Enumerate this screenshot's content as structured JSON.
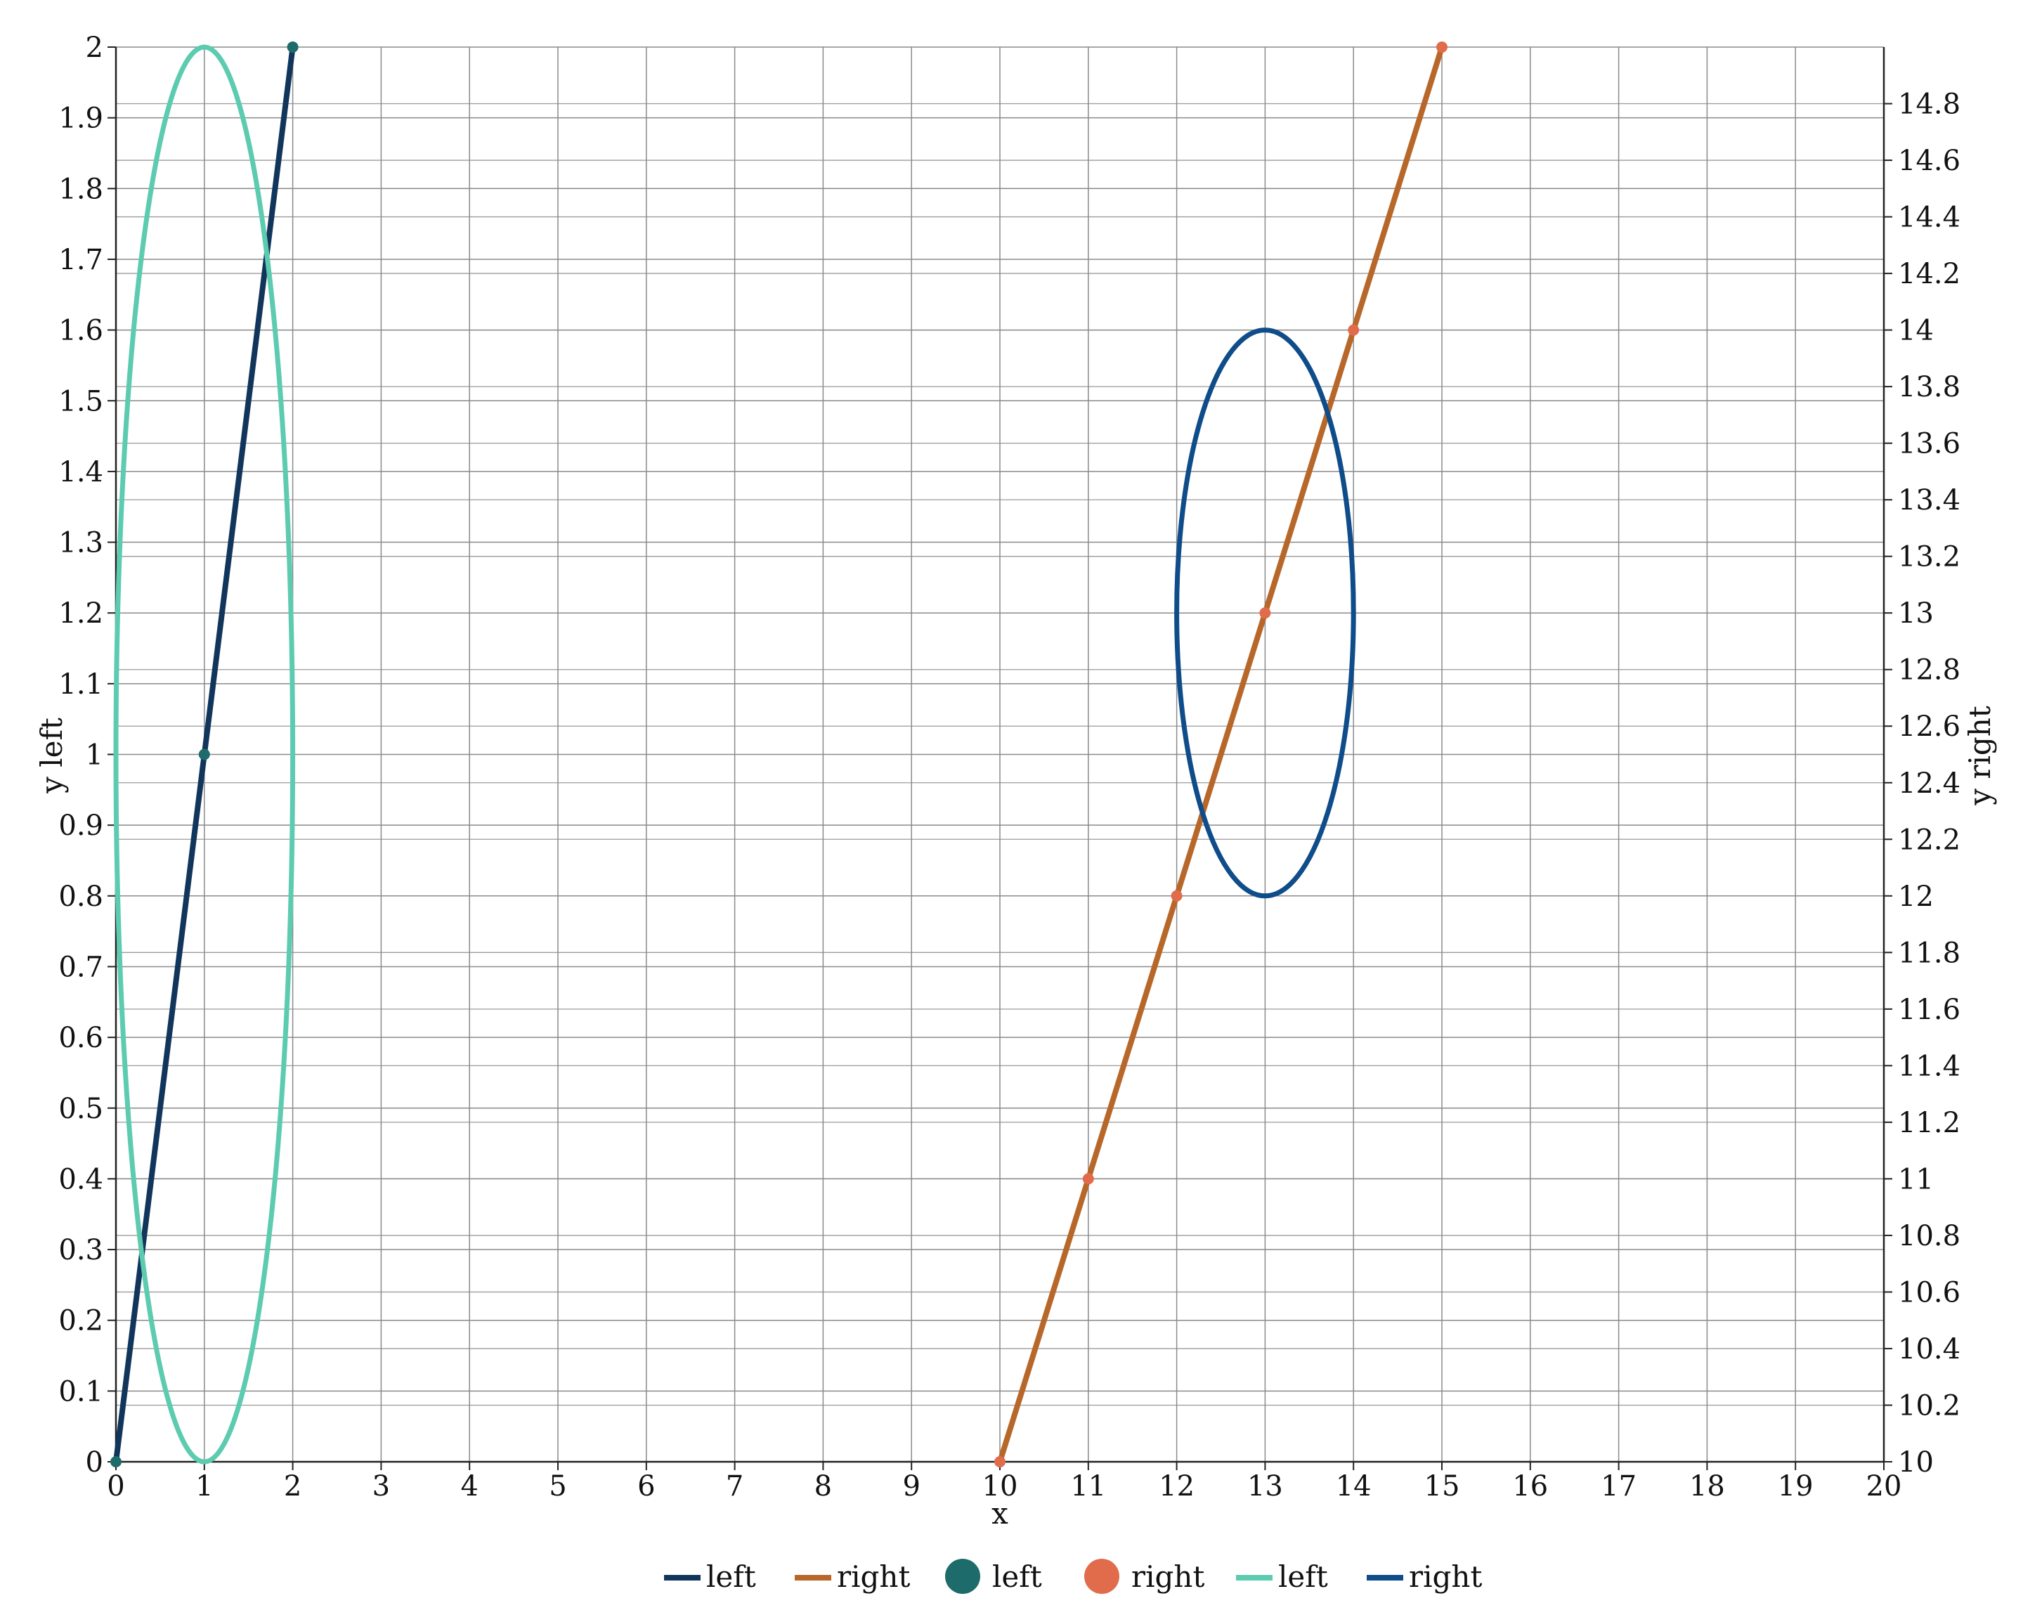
{
  "chart_data": {
    "type": "line",
    "title": "",
    "xlabel": "x",
    "ylabel_left": "y left",
    "ylabel_right": "y right",
    "xlim": [
      0,
      20
    ],
    "ylim_left": [
      0,
      2
    ],
    "ylim_right": [
      10,
      15
    ],
    "x_ticks": [
      "0",
      "1",
      "2",
      "3",
      "4",
      "5",
      "6",
      "7",
      "8",
      "9",
      "10",
      "11",
      "12",
      "13",
      "14",
      "15",
      "16",
      "17",
      "18",
      "19",
      "20"
    ],
    "y_left_ticks": [
      "0",
      "0.1",
      "0.2",
      "0.3",
      "0.4",
      "0.5",
      "0.6",
      "0.7",
      "0.8",
      "0.9",
      "1",
      "1.1",
      "1.2",
      "1.3",
      "1.4",
      "1.5",
      "1.6",
      "1.7",
      "1.8",
      "1.9",
      "2"
    ],
    "y_right_ticks": [
      "10",
      "10.2",
      "10.4",
      "10.6",
      "10.8",
      "11",
      "11.2",
      "11.4",
      "11.6",
      "11.8",
      "12",
      "12.2",
      "12.4",
      "12.6",
      "12.8",
      "13",
      "13.2",
      "13.4",
      "13.6",
      "13.8",
      "14",
      "14.2",
      "14.4",
      "14.6",
      "14.8"
    ],
    "grid": true,
    "legend_position": "bottom-center",
    "series": [
      {
        "name": "left",
        "kind": "line",
        "axis": "left",
        "color": "#12355b",
        "x": [
          0,
          1,
          2
        ],
        "y": [
          0,
          1,
          2
        ]
      },
      {
        "name": "right",
        "kind": "line",
        "axis": "right",
        "color": "#b8672a",
        "x": [
          10,
          11,
          12,
          13,
          14,
          15
        ],
        "y": [
          10,
          11,
          12,
          13,
          14,
          15
        ]
      },
      {
        "name": "left",
        "kind": "scatter",
        "axis": "left",
        "color": "#1e6b6b",
        "x": [
          0,
          1,
          2
        ],
        "y": [
          0,
          1,
          2
        ]
      },
      {
        "name": "right",
        "kind": "scatter",
        "axis": "right",
        "color": "#e06c4b",
        "x": [
          10,
          11,
          12,
          13,
          14,
          15
        ],
        "y": [
          10,
          11,
          12,
          13,
          14,
          15
        ]
      },
      {
        "name": "left",
        "kind": "ellipse",
        "axis": "left",
        "color": "#5ccbb0",
        "center": [
          1,
          1
        ],
        "radius_x": 1,
        "radius_y": 1
      },
      {
        "name": "right",
        "kind": "ellipse",
        "axis": "right",
        "color": "#0f4c8a",
        "center": [
          13,
          13
        ],
        "radius_x": 1,
        "radius_y": 1
      }
    ]
  }
}
